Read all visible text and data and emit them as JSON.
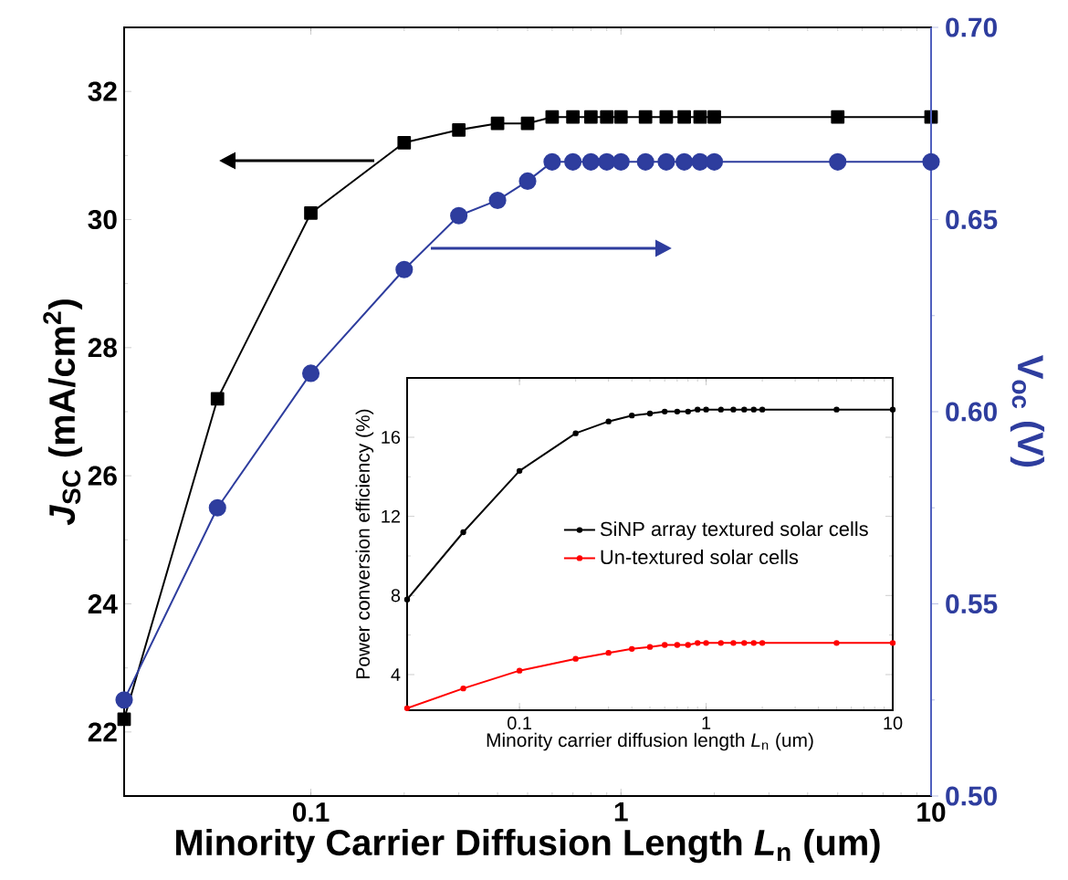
{
  "chart_data": [
    {
      "type": "line",
      "x": [
        0.025,
        0.05,
        0.1,
        0.2,
        0.3,
        0.4,
        0.5,
        0.6,
        0.7,
        0.8,
        0.9,
        1.0,
        1.2,
        1.4,
        1.6,
        1.8,
        2.0,
        5,
        10
      ],
      "xlim": [
        0.025,
        10
      ],
      "xticks": [
        0.1,
        1,
        10
      ],
      "log": "x",
      "ylim": [
        21,
        33
      ],
      "yticks": [
        22,
        24,
        26,
        28,
        30,
        32
      ],
      "y2lim": [
        0.5,
        0.7
      ],
      "y2ticks": [
        {
          "value": 0.5,
          "label": "0.50"
        },
        0.55,
        {
          "value": 0.6,
          "label": "0.60"
        },
        0.65,
        {
          "value": 0.7,
          "label": "0.70"
        }
      ],
      "xlabel": "Minority Carrier Diffusion Length *L*$_{n}$ (um)",
      "ylabel": "*J*$_{SC}$ (mA/cm$^{2}$)",
      "y2label": "V$_{oc}$ (V)",
      "series": [
        {
          "color": "#000000",
          "marker": "square",
          "values": [
            22.2,
            27.2,
            30.1,
            31.2,
            31.4,
            31.5,
            31.5,
            31.6,
            31.6,
            31.6,
            31.6,
            31.6,
            31.6,
            31.6,
            31.6,
            31.6,
            31.6,
            31.6,
            31.6
          ]
        },
        {
          "color": "#2e3d9e",
          "marker": "circle",
          "axis": "y2",
          "values": [
            0.525,
            0.575,
            0.61,
            0.637,
            0.651,
            0.655,
            0.66,
            0.665,
            0.665,
            0.665,
            0.665,
            0.665,
            0.665,
            0.665,
            0.665,
            0.665,
            0.665,
            0.665,
            0.665
          ]
        }
      ]
    },
    {
      "type": "line",
      "x": [
        0.025,
        0.05,
        0.1,
        0.2,
        0.3,
        0.4,
        0.5,
        0.6,
        0.7,
        0.8,
        0.9,
        1.0,
        1.2,
        1.4,
        1.6,
        1.8,
        2.0,
        5,
        10
      ],
      "xlim": [
        0.025,
        10
      ],
      "xticks": [
        0.1,
        1,
        10
      ],
      "log": "x",
      "ylim": [
        2.2,
        19
      ],
      "yticks": [
        4,
        8,
        12,
        16
      ],
      "xlabel": "Minority carrier diffusion length *L*$_{n}$ (um)",
      "ylabel": "Power conversion efficiency (%)",
      "legend": "center right",
      "marker": "circle",
      "series": [
        {
          "name": "SiNP array textured solar cells",
          "color": "#000000",
          "values": [
            7.8,
            11.2,
            14.3,
            16.2,
            16.8,
            17.1,
            17.2,
            17.3,
            17.3,
            17.3,
            17.4,
            17.4,
            17.4,
            17.4,
            17.4,
            17.4,
            17.4,
            17.4,
            17.4
          ]
        },
        {
          "name": "Un-textured solar cells",
          "color": "#ff0000",
          "values": [
            2.3,
            3.3,
            4.2,
            4.8,
            5.1,
            5.3,
            5.4,
            5.5,
            5.5,
            5.5,
            5.6,
            5.6,
            5.6,
            5.6,
            5.6,
            5.6,
            5.6,
            5.6,
            5.6
          ]
        }
      ]
    }
  ]
}
